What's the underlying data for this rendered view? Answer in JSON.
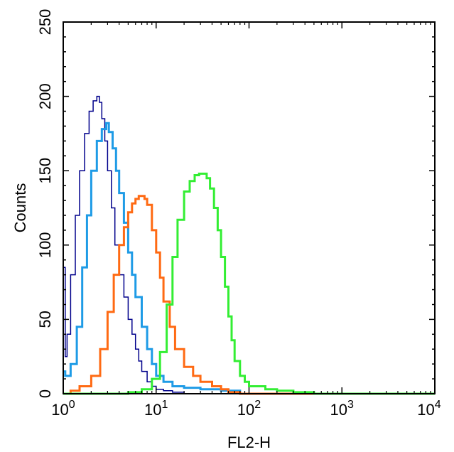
{
  "chart_data": {
    "type": "line",
    "title": "",
    "xlabel": "FL2-H",
    "ylabel": "Counts",
    "xscale": "log",
    "xlim": [
      1,
      10000
    ],
    "ylim": [
      0,
      250
    ],
    "x_ticks": [
      {
        "base": "10",
        "exp": "0",
        "value": 1
      },
      {
        "base": "10",
        "exp": "1",
        "value": 10
      },
      {
        "base": "10",
        "exp": "2",
        "value": 100
      },
      {
        "base": "10",
        "exp": "3",
        "value": 1000
      },
      {
        "base": "10",
        "exp": "4",
        "value": 10000
      }
    ],
    "y_ticks": [
      "0",
      "50",
      "100",
      "150",
      "200",
      "250"
    ],
    "grid": false,
    "legend": "none",
    "series": [
      {
        "color": "#00008B",
        "stroke_width": 1.5,
        "x": [
          1,
          1.05,
          1.1,
          1.2,
          1.35,
          1.5,
          1.7,
          1.9,
          2.1,
          2.3,
          2.45,
          2.6,
          2.8,
          3.0,
          3.3,
          3.6,
          4.0,
          4.5,
          5.0,
          5.5,
          6.0,
          6.5,
          7.0,
          8.0,
          9.0,
          10,
          12,
          15,
          20,
          30,
          50,
          100,
          10000
        ],
        "y": [
          85,
          25,
          40,
          80,
          120,
          150,
          175,
          190,
          197,
          200,
          196,
          185,
          170,
          150,
          125,
          100,
          80,
          65,
          50,
          40,
          30,
          22,
          15,
          8,
          5,
          3,
          2,
          1,
          0,
          0,
          0,
          0,
          0
        ]
      },
      {
        "color": "#1E9BE6",
        "stroke_width": 3,
        "x": [
          1,
          1.05,
          1.2,
          1.4,
          1.6,
          1.8,
          2.0,
          2.3,
          2.6,
          2.9,
          3.1,
          3.4,
          3.7,
          4.0,
          4.5,
          5.0,
          5.5,
          6.0,
          7.0,
          8.0,
          9.0,
          10,
          12,
          15,
          20,
          30,
          50,
          80,
          10000
        ],
        "y": [
          15,
          12,
          20,
          45,
          85,
          120,
          150,
          170,
          178,
          182,
          176,
          165,
          150,
          135,
          115,
          95,
          80,
          65,
          45,
          30,
          20,
          12,
          8,
          5,
          4,
          3,
          2,
          0,
          0
        ]
      },
      {
        "color": "#FF6A13",
        "stroke_width": 3,
        "x": [
          1,
          1.2,
          1.5,
          2.0,
          2.5,
          3.0,
          3.5,
          4.0,
          4.5,
          5.0,
          5.5,
          6.0,
          6.5,
          7.0,
          7.5,
          8.0,
          9.0,
          10,
          11,
          12,
          14,
          16,
          20,
          25,
          30,
          40,
          50,
          60,
          80,
          100,
          10000
        ],
        "y": [
          0,
          2,
          5,
          12,
          30,
          55,
          80,
          100,
          112,
          122,
          128,
          131,
          133,
          133,
          131,
          127,
          110,
          95,
          78,
          62,
          45,
          30,
          18,
          12,
          8,
          5,
          3,
          1,
          0,
          0,
          0
        ]
      },
      {
        "color": "#33EE33",
        "stroke_width": 3,
        "x": [
          1,
          3,
          5,
          7,
          9,
          11,
          13,
          15,
          17,
          20,
          23,
          26,
          29,
          32,
          35,
          38,
          42,
          46,
          50,
          55,
          60,
          65,
          70,
          80,
          90,
          100,
          150,
          200,
          300,
          500,
          700,
          10000
        ],
        "y": [
          0,
          0,
          1,
          3,
          10,
          28,
          60,
          92,
          117,
          136,
          143,
          147,
          148,
          148,
          145,
          138,
          125,
          110,
          92,
          72,
          52,
          36,
          22,
          12,
          8,
          5,
          3,
          2,
          1,
          0,
          0,
          0
        ]
      }
    ]
  }
}
